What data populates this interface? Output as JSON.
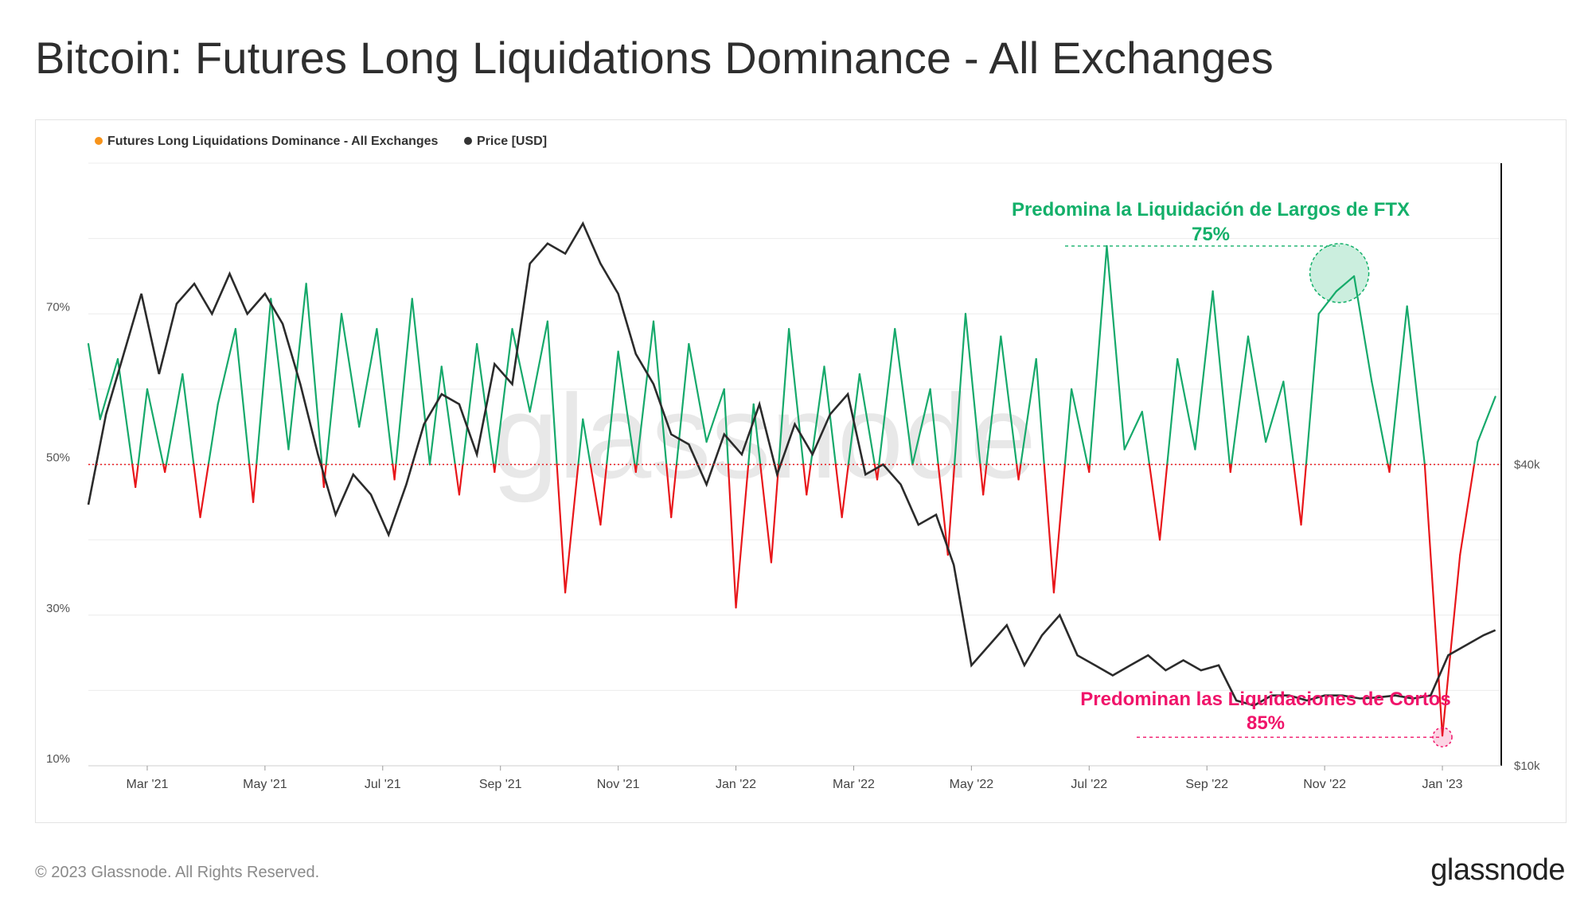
{
  "title": "Bitcoin: Futures Long Liquidations Dominance - All Exchanges",
  "footer": {
    "copyright": "© 2023 Glassnode. All Rights Reserved.",
    "logo": "glassnode"
  },
  "watermark": "glassnode",
  "colors": {
    "above": "#16a96b",
    "below": "#e8161a",
    "price": "#2b2b2b",
    "annotation_green": "#14b06a",
    "annotation_pink": "#f0146a",
    "legend_dominance": "#f7931a",
    "legend_price": "#333333",
    "grid": "#ececec"
  },
  "chart_data": {
    "type": "line",
    "legend": [
      "Futures Long Liquidations Dominance - All Exchanges",
      "Price [USD]"
    ],
    "x_ticks": [
      "Mar '21",
      "May '21",
      "Jul '21",
      "Sep '21",
      "Nov '21",
      "Jan '22",
      "Mar '22",
      "May '22",
      "Jul '22",
      "Sep '22",
      "Nov '22",
      "Jan '23"
    ],
    "x_range": [
      0,
      24
    ],
    "y_left": {
      "ticks": [
        "10%",
        "30%",
        "50%",
        "70%"
      ],
      "tick_values": [
        10,
        30,
        50,
        70
      ],
      "range": [
        10,
        90
      ],
      "threshold": 50
    },
    "y_right": {
      "ticks": [
        "$10k",
        "$40k"
      ],
      "tick_values": [
        10000,
        40000
      ],
      "range": [
        10000,
        70000
      ],
      "scale": "linear"
    },
    "dominance_series": {
      "name": "Futures Long Liquidations Dominance - All Exchanges",
      "x": [
        0,
        0.2,
        0.5,
        0.8,
        1.0,
        1.3,
        1.6,
        1.9,
        2.2,
        2.5,
        2.8,
        3.1,
        3.4,
        3.7,
        4.0,
        4.3,
        4.6,
        4.9,
        5.2,
        5.5,
        5.8,
        6.0,
        6.3,
        6.6,
        6.9,
        7.2,
        7.5,
        7.8,
        8.1,
        8.4,
        8.7,
        9.0,
        9.3,
        9.6,
        9.9,
        10.2,
        10.5,
        10.8,
        11.0,
        11.3,
        11.6,
        11.9,
        12.2,
        12.5,
        12.8,
        13.1,
        13.4,
        13.7,
        14.0,
        14.3,
        14.6,
        14.9,
        15.2,
        15.5,
        15.8,
        16.1,
        16.4,
        16.7,
        17.0,
        17.3,
        17.6,
        17.9,
        18.2,
        18.5,
        18.8,
        19.1,
        19.4,
        19.7,
        20.0,
        20.3,
        20.6,
        20.9,
        21.2,
        21.5,
        21.8,
        22.1,
        22.4,
        22.7,
        23.0,
        23.3,
        23.6,
        23.9
      ],
      "y": [
        66,
        56,
        64,
        47,
        60,
        49,
        62,
        43,
        58,
        68,
        45,
        72,
        52,
        74,
        47,
        70,
        55,
        68,
        48,
        72,
        50,
        63,
        46,
        66,
        49,
        68,
        57,
        69,
        33,
        56,
        42,
        65,
        49,
        69,
        43,
        66,
        53,
        60,
        31,
        58,
        37,
        68,
        46,
        63,
        43,
        62,
        48,
        68,
        50,
        60,
        38,
        70,
        46,
        67,
        48,
        64,
        33,
        60,
        49,
        79,
        52,
        57,
        40,
        64,
        52,
        73,
        49,
        67,
        53,
        61,
        42,
        70,
        73,
        75,
        61,
        49,
        71,
        50,
        14,
        38,
        53,
        59
      ]
    },
    "price_series": {
      "name": "Price [USD]",
      "x": [
        0,
        0.3,
        0.6,
        0.9,
        1.2,
        1.5,
        1.8,
        2.1,
        2.4,
        2.7,
        3.0,
        3.3,
        3.6,
        3.9,
        4.2,
        4.5,
        4.8,
        5.1,
        5.4,
        5.7,
        6.0,
        6.3,
        6.6,
        6.9,
        7.2,
        7.5,
        7.8,
        8.1,
        8.4,
        8.7,
        9.0,
        9.3,
        9.6,
        9.9,
        10.2,
        10.5,
        10.8,
        11.1,
        11.4,
        11.7,
        12.0,
        12.3,
        12.6,
        12.9,
        13.2,
        13.5,
        13.8,
        14.1,
        14.4,
        14.7,
        15.0,
        15.3,
        15.6,
        15.9,
        16.2,
        16.5,
        16.8,
        17.1,
        17.4,
        17.7,
        18.0,
        18.3,
        18.6,
        18.9,
        19.2,
        19.5,
        19.8,
        20.1,
        20.4,
        20.7,
        21.0,
        21.3,
        21.6,
        21.9,
        22.2,
        22.5,
        22.8,
        23.1,
        23.4,
        23.7,
        23.9
      ],
      "y": [
        36000,
        45000,
        51000,
        57000,
        49000,
        56000,
        58000,
        55000,
        59000,
        55000,
        57000,
        54000,
        48000,
        41000,
        35000,
        39000,
        37000,
        33000,
        38000,
        44000,
        47000,
        46000,
        41000,
        50000,
        48000,
        60000,
        62000,
        61000,
        64000,
        60000,
        57000,
        51000,
        48000,
        43000,
        42000,
        38000,
        43000,
        41000,
        46000,
        39000,
        44000,
        41000,
        45000,
        47000,
        39000,
        40000,
        38000,
        34000,
        35000,
        30000,
        20000,
        22000,
        24000,
        20000,
        23000,
        25000,
        21000,
        20000,
        19000,
        20000,
        21000,
        19500,
        20500,
        19500,
        20000,
        16500,
        16000,
        17000,
        17000,
        16500,
        17000,
        17000,
        16700,
        16800,
        17000,
        16700,
        17000,
        21000,
        22000,
        23000,
        23500
      ]
    },
    "annotations": [
      {
        "text": "Predomina la Liquidación de Largos de FTX",
        "value_label": "75%",
        "x": 21.25,
        "y": 79
      },
      {
        "text": "Predominan las Liquidaciones de Cortos",
        "value_label": "85%",
        "x": 23.0,
        "y": 14
      }
    ]
  }
}
